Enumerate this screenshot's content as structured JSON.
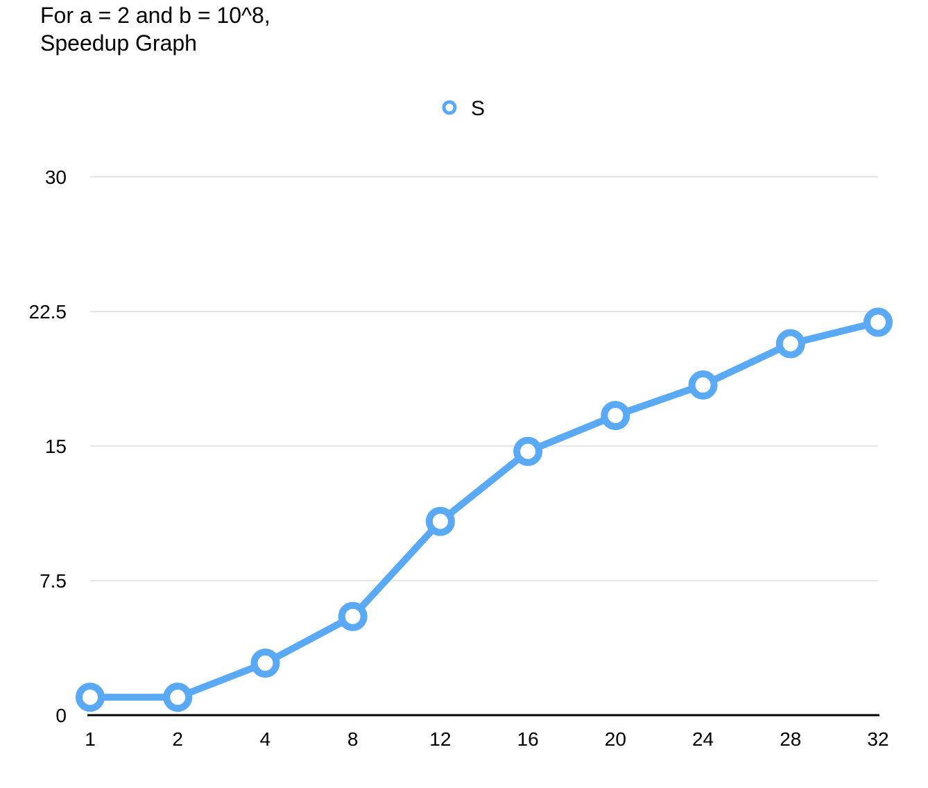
{
  "chart_data": {
    "type": "line",
    "title_lines": [
      "For a = 2 and b = 10^8,",
      "Speedup Graph"
    ],
    "categories": [
      "1",
      "2",
      "4",
      "8",
      "12",
      "16",
      "20",
      "24",
      "28",
      "32"
    ],
    "series": [
      {
        "name": "S",
        "color": "#5aa9f5",
        "values": [
          1.0,
          1.0,
          2.9,
          5.5,
          10.8,
          14.7,
          16.7,
          18.4,
          20.7,
          21.9
        ]
      }
    ],
    "y_ticks": [
      "0",
      "7.5",
      "15",
      "22.5",
      "30"
    ],
    "ylim": [
      0,
      30
    ],
    "grid": true,
    "legend": "top-center",
    "xlabel": "",
    "ylabel": ""
  }
}
